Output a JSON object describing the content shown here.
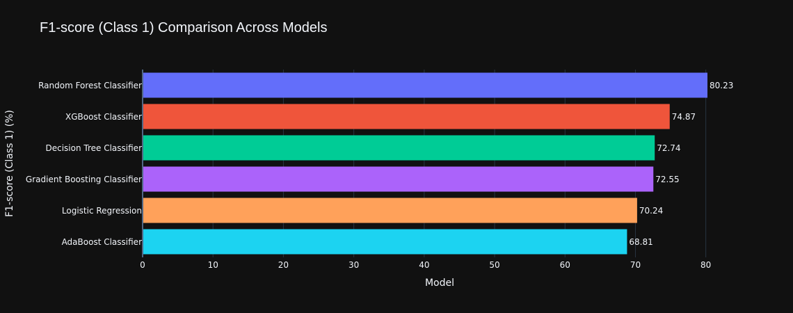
{
  "chart_data": {
    "type": "bar",
    "orientation": "horizontal",
    "title": "F1-score (Class 1) Comparison Across Models",
    "xlabel": "Model",
    "ylabel": "F1-score (Class 1) (%)",
    "xlim": [
      0,
      80.23
    ],
    "x_ticks": [
      0,
      10,
      20,
      30,
      40,
      50,
      60,
      70,
      80
    ],
    "grid": true,
    "categories": [
      "AdaBoost Classifier",
      "Logistic Regression",
      "Gradient Boosting Classifier",
      "Decision Tree Classifier",
      "XGBoost Classifier",
      "Random Forest Classifier"
    ],
    "values": [
      68.81,
      70.24,
      72.55,
      72.74,
      74.87,
      80.23
    ],
    "data_labels": [
      "68.81",
      "70.24",
      "72.55",
      "72.74",
      "74.87",
      "80.23"
    ],
    "colors": [
      "#1CD3F1",
      "#FFA15A",
      "#AB63FA",
      "#00CC96",
      "#EF553B",
      "#636EFA"
    ]
  },
  "theme": {
    "background": "#111111",
    "grid_color": "#283442",
    "axis_line_color": "#506784",
    "text_color": "#f2f5fa"
  }
}
